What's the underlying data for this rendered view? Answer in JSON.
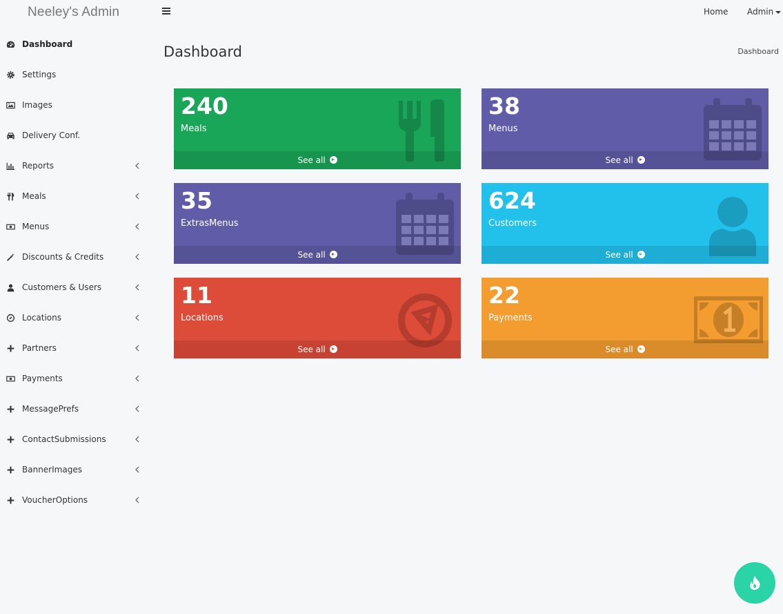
{
  "app": {
    "brand": "Neeley's Admin"
  },
  "topnav": {
    "home": "Home",
    "admin": "Admin"
  },
  "sidebar": {
    "items": [
      {
        "label": "Dashboard",
        "icon": "dashboard-icon",
        "active": true,
        "submenu": false
      },
      {
        "label": "Settings",
        "icon": "gear-icon",
        "submenu": false
      },
      {
        "label": "Images",
        "icon": "image-icon",
        "submenu": false
      },
      {
        "label": "Delivery Conf.",
        "icon": "car-icon",
        "submenu": false
      },
      {
        "label": "Reports",
        "icon": "bar-chart-icon",
        "submenu": true
      },
      {
        "label": "Meals",
        "icon": "cutlery-icon",
        "submenu": true
      },
      {
        "label": "Menus",
        "icon": "money-icon",
        "submenu": true
      },
      {
        "label": "Discounts & Credits",
        "icon": "magic-wand-icon",
        "submenu": true
      },
      {
        "label": "Customers & Users",
        "icon": "user-icon",
        "submenu": true
      },
      {
        "label": "Locations",
        "icon": "compass-icon",
        "submenu": true
      },
      {
        "label": "Partners",
        "icon": "plus-icon",
        "submenu": true
      },
      {
        "label": "Payments",
        "icon": "money-icon",
        "submenu": true
      },
      {
        "label": "MessagePrefs",
        "icon": "plus-icon",
        "submenu": true
      },
      {
        "label": "ContactSubmissions",
        "icon": "plus-icon",
        "submenu": true
      },
      {
        "label": "BannerImages",
        "icon": "plus-icon",
        "submenu": true
      },
      {
        "label": "VoucherOptions",
        "icon": "plus-icon",
        "submenu": true
      }
    ]
  },
  "page": {
    "title": "Dashboard",
    "breadcrumb": "Dashboard"
  },
  "cards": [
    {
      "value": "240",
      "label": "Meals",
      "link": "See all",
      "color": "#1aa659",
      "icon": "cutlery-icon"
    },
    {
      "value": "38",
      "label": "Menus",
      "link": "See all",
      "color": "#605ca8",
      "icon": "calendar-icon"
    },
    {
      "value": "35",
      "label": "ExtrasMenus",
      "link": "See all",
      "color": "#605ca8",
      "icon": "calendar-icon"
    },
    {
      "value": "624",
      "label": "Customers",
      "link": "See all",
      "color": "#22c1ec",
      "icon": "user-icon"
    },
    {
      "value": "11",
      "label": "Locations",
      "link": "See all",
      "color": "#dd4b39",
      "icon": "play-circle-icon"
    },
    {
      "value": "22",
      "label": "Payments",
      "link": "See all",
      "color": "#f39c2f",
      "icon": "money-icon"
    }
  ],
  "fab": {
    "icon": "flame-icon",
    "color": "#2bd4a6"
  }
}
